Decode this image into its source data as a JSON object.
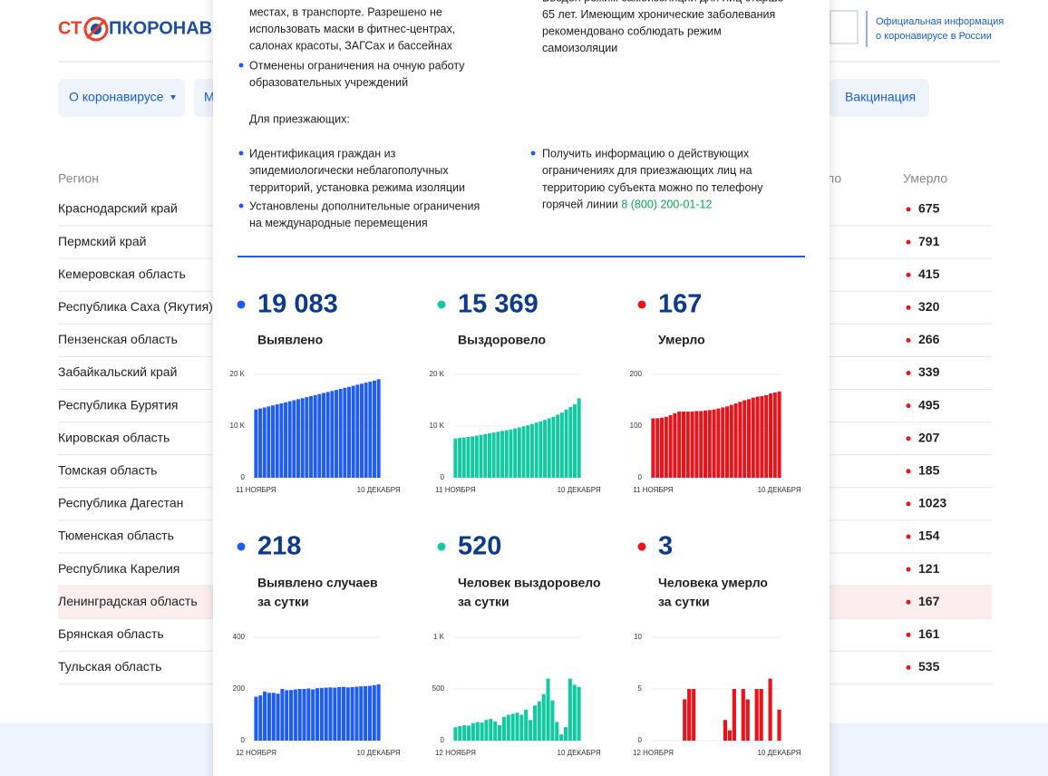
{
  "header": {
    "logo_start": "СТ",
    "logo_end": "ПКОРОНАВИ",
    "info": [
      "Официальная информация",
      "о коронавирусе в России"
    ]
  },
  "nav": [
    "О коронавирусе",
    "М",
    "Вакцинация"
  ],
  "table": {
    "columns": [
      "Регион",
      "ло",
      "Умерло"
    ],
    "rows": [
      [
        "Краснодарский край",
        675
      ],
      [
        "Пермский край",
        791
      ],
      [
        "Кемеровская область",
        415
      ],
      [
        "Республика Саха (Якутия)",
        320
      ],
      [
        "Пензенская область",
        266
      ],
      [
        "Забайкальский край",
        339
      ],
      [
        "Республика Бурятия",
        495
      ],
      [
        "Кировская область",
        207
      ],
      [
        "Томская область",
        185
      ],
      [
        "Республика Дагестан",
        1023
      ],
      [
        "Тюменская область",
        154
      ],
      [
        "Республика Карелия",
        121
      ],
      [
        "Ленинградская область",
        167
      ],
      [
        "Брянская область",
        161
      ],
      [
        "Тульская область",
        535
      ]
    ]
  },
  "modal": {
    "intro_left": [
      "местах, в транспорте. Разрешено не",
      "использовать маски в фитнес-центрах,",
      "салонах красоты, ЗАГСах и бассейнах"
    ],
    "intro_right": [
      "Введен режим самоизоляции для лиц старше",
      "65 лет. Имеющим хронические заболевания",
      "рекомендовано соблюдать режим",
      "самоизоляции"
    ],
    "bullet": [
      "Отменены ограничения на очную работу",
      "образовательных учреждений"
    ],
    "arrivals_title": "Для приезжающих:",
    "arrivals_left": [
      [
        "Идентификация граждан из",
        "эпидемиологически неблагополучных",
        "территорий, установка режима изоляции"
      ],
      [
        "Установлены дополнительные ограничения",
        "на международные перемещения"
      ]
    ],
    "arrivals_right": [
      "Получить информацию о действующих",
      "ограничениях для приезжающих лиц на",
      "территорию субъекта можно по телефону",
      "горячей линии "
    ],
    "phone": "8 (800) 200-01-12"
  },
  "chart_data": [
    {
      "type": "bar",
      "title": "19 083",
      "subtitle": [
        "Выявлено"
      ],
      "color": "#1f5cf5",
      "ylim": [
        0,
        20000
      ],
      "yticks": [
        0,
        {
          "value": 10000,
          "label": "10 K"
        },
        {
          "value": 20000,
          "label": "20 K"
        }
      ],
      "categories": [
        "11 НОЯБРЯ",
        null,
        null,
        null,
        null,
        null,
        null,
        null,
        null,
        null,
        null,
        null,
        null,
        null,
        null,
        null,
        null,
        null,
        null,
        null,
        null,
        null,
        null,
        null,
        null,
        null,
        null,
        null,
        null,
        "10 ДЕКАБРЯ"
      ],
      "values": [
        13200,
        13400,
        13600,
        13800,
        14000,
        14200,
        14400,
        14600,
        14800,
        15000,
        15200,
        15400,
        15600,
        15800,
        16000,
        16200,
        16400,
        16600,
        16800,
        17000,
        17200,
        17400,
        17600,
        17800,
        18000,
        18200,
        18400,
        18600,
        18800,
        19083
      ]
    },
    {
      "type": "bar",
      "title": "15 369",
      "subtitle": [
        "Выздоровело"
      ],
      "color": "#13c9a1",
      "ylim": [
        0,
        20000
      ],
      "yticks": [
        0,
        {
          "value": 10000,
          "label": "10 K"
        },
        {
          "value": 20000,
          "label": "20 K"
        }
      ],
      "categories": [
        "11 НОЯБРЯ",
        null,
        null,
        null,
        null,
        null,
        null,
        null,
        null,
        null,
        null,
        null,
        null,
        null,
        null,
        null,
        null,
        null,
        null,
        null,
        null,
        null,
        null,
        null,
        null,
        null,
        null,
        null,
        null,
        "10 ДЕКАБРЯ"
      ],
      "values": [
        7600,
        7700,
        7800,
        7900,
        8000,
        8150,
        8300,
        8450,
        8600,
        8750,
        8900,
        9050,
        9200,
        9350,
        9550,
        9750,
        9950,
        10150,
        10400,
        10650,
        10900,
        11200,
        11500,
        11800,
        12200,
        12600,
        13200,
        13700,
        14200,
        15369
      ]
    },
    {
      "type": "bar",
      "title": "167",
      "subtitle": [
        "Умерло"
      ],
      "color": "#e8131b",
      "ylim": [
        0,
        200
      ],
      "yticks": [
        0,
        100,
        200
      ],
      "categories": [
        "11 НОЯБРЯ",
        null,
        null,
        null,
        null,
        null,
        null,
        null,
        null,
        null,
        null,
        null,
        null,
        null,
        null,
        null,
        null,
        null,
        null,
        null,
        null,
        null,
        null,
        null,
        null,
        null,
        null,
        null,
        null,
        "10 ДЕКАБРЯ"
      ],
      "values": [
        115,
        115,
        116,
        118,
        121,
        125,
        128,
        128,
        128,
        128,
        129,
        129,
        130,
        131,
        132,
        134,
        136,
        138,
        141,
        144,
        147,
        150,
        152,
        155,
        157,
        158,
        160,
        163,
        165,
        167
      ]
    },
    {
      "type": "bar",
      "title": "218",
      "subtitle": [
        "Выявлено случаев",
        "за сутки"
      ],
      "color": "#1f5cf5",
      "ylim": [
        0,
        400
      ],
      "yticks": [
        0,
        200,
        400
      ],
      "categories": [
        "12 НОЯБРЯ",
        null,
        null,
        null,
        null,
        null,
        null,
        null,
        null,
        null,
        null,
        null,
        null,
        null,
        null,
        null,
        null,
        null,
        null,
        null,
        null,
        null,
        null,
        null,
        null,
        null,
        null,
        null,
        "10 ДЕКАБРЯ"
      ],
      "values": [
        170,
        175,
        190,
        185,
        185,
        182,
        200,
        195,
        196,
        198,
        200,
        200,
        202,
        198,
        203,
        204,
        205,
        206,
        205,
        207,
        208,
        206,
        207,
        209,
        210,
        211,
        212,
        215,
        218
      ]
    },
    {
      "type": "bar",
      "title": "520",
      "subtitle": [
        "Человек выздоровело",
        "за сутки"
      ],
      "color": "#13c9a1",
      "ylim": [
        0,
        1000
      ],
      "yticks": [
        0,
        500,
        {
          "value": 1000,
          "label": "1 K"
        }
      ],
      "categories": [
        "12 НОЯБРЯ",
        null,
        null,
        null,
        null,
        null,
        null,
        null,
        null,
        null,
        null,
        null,
        null,
        null,
        null,
        null,
        null,
        null,
        null,
        null,
        null,
        null,
        null,
        null,
        null,
        null,
        null,
        null,
        "10 ДЕКАБРЯ"
      ],
      "values": [
        130,
        140,
        150,
        145,
        170,
        180,
        175,
        200,
        210,
        185,
        150,
        230,
        250,
        260,
        270,
        250,
        300,
        200,
        340,
        380,
        450,
        600,
        390,
        180,
        60,
        130,
        600,
        540,
        520
      ]
    },
    {
      "type": "bar",
      "title": "3",
      "subtitle": [
        "Человека умерло",
        "за сутки"
      ],
      "color": "#e8131b",
      "ylim": [
        0,
        10
      ],
      "yticks": [
        0,
        5,
        10
      ],
      "categories": [
        "12 НОЯБРЯ",
        null,
        null,
        null,
        null,
        null,
        null,
        null,
        null,
        null,
        null,
        null,
        null,
        null,
        null,
        null,
        null,
        null,
        null,
        null,
        null,
        null,
        null,
        null,
        null,
        null,
        null,
        null,
        "10 ДЕКАБРЯ"
      ],
      "values": [
        0,
        0,
        0,
        0,
        0,
        0,
        0,
        4,
        5,
        5,
        0,
        0,
        0,
        0,
        0,
        0,
        2,
        1,
        5,
        0,
        5,
        4,
        0,
        5,
        5,
        0,
        6,
        0,
        3
      ]
    }
  ]
}
